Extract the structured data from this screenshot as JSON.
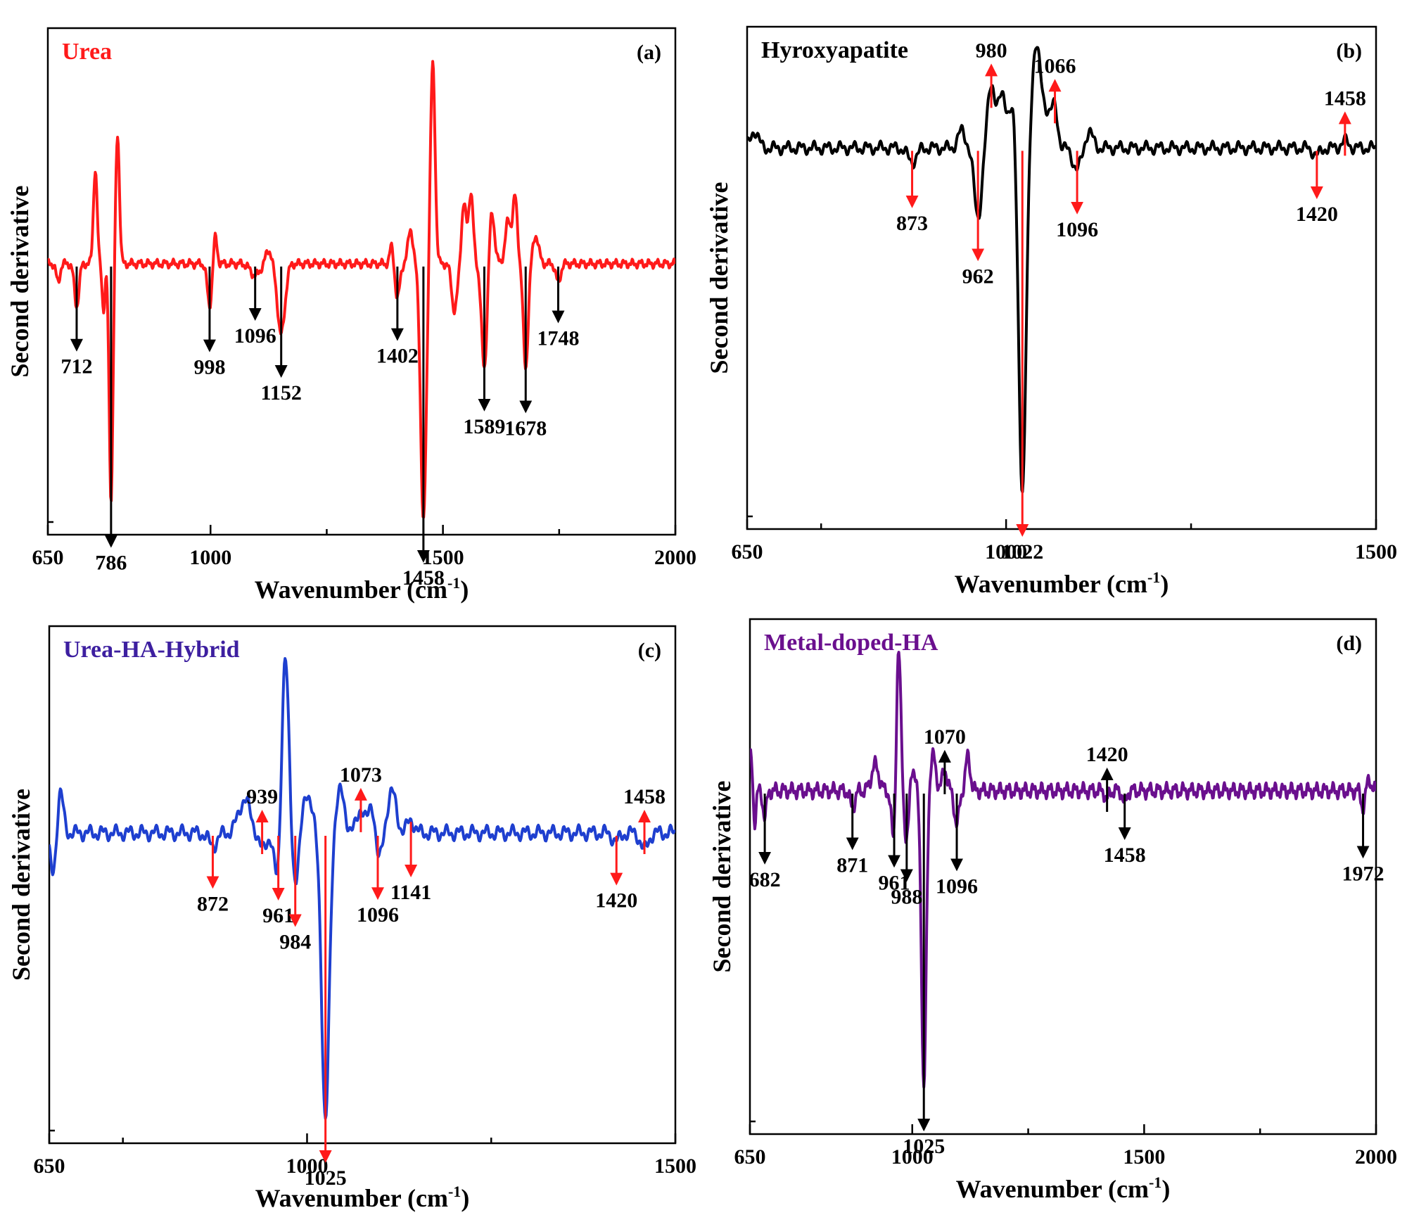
{
  "chart_data": [
    {
      "type": "line",
      "panel_label": "(a)",
      "title": "Urea",
      "title_color": "#ff1a1a",
      "line_color": "#ff1a1a",
      "arrow_color": "#000000",
      "xlabel": "Wavenumber (cm",
      "xlabel_exp": "-1",
      "xlabel_tail": ")",
      "ylabel": "Second derivative",
      "xlim": [
        650,
        2000
      ],
      "major_ticks": [
        650,
        1000,
        1500,
        2000
      ],
      "tick_labels": [
        "650",
        "1000",
        "1500",
        "2000"
      ],
      "minor_ticks": [
        1250,
        1750
      ],
      "baseline": 0,
      "ylim": [
        -1.15,
        1.0
      ],
      "peaks": [
        {
          "x": 672,
          "y": -0.08,
          "w": 4
        },
        {
          "x": 712,
          "y": -0.18,
          "w": 5
        },
        {
          "x": 752,
          "y": 0.4,
          "w": 4
        },
        {
          "x": 786,
          "y": -1.0,
          "w": 4
        },
        {
          "x": 770,
          "y": -0.2,
          "w": 3
        },
        {
          "x": 800,
          "y": 0.55,
          "w": 4
        },
        {
          "x": 998,
          "y": -0.18,
          "w": 5
        },
        {
          "x": 1010,
          "y": 0.12,
          "w": 4
        },
        {
          "x": 1096,
          "y": -0.05,
          "w": 10
        },
        {
          "x": 1152,
          "y": -0.3,
          "w": 8
        },
        {
          "x": 1125,
          "y": 0.06,
          "w": 6
        },
        {
          "x": 1402,
          "y": -0.15,
          "w": 5
        },
        {
          "x": 1390,
          "y": 0.08,
          "w": 4
        },
        {
          "x": 1430,
          "y": 0.15,
          "w": 5
        },
        {
          "x": 1458,
          "y": -1.1,
          "w": 6
        },
        {
          "x": 1478,
          "y": 0.85,
          "w": 5
        },
        {
          "x": 1525,
          "y": -0.2,
          "w": 6
        },
        {
          "x": 1545,
          "y": 0.25,
          "w": 5
        },
        {
          "x": 1560,
          "y": 0.3,
          "w": 5
        },
        {
          "x": 1589,
          "y": -0.45,
          "w": 6
        },
        {
          "x": 1605,
          "y": 0.22,
          "w": 6
        },
        {
          "x": 1640,
          "y": 0.18,
          "w": 6
        },
        {
          "x": 1655,
          "y": 0.28,
          "w": 5
        },
        {
          "x": 1678,
          "y": -0.45,
          "w": 5
        },
        {
          "x": 1700,
          "y": 0.12,
          "w": 6
        },
        {
          "x": 1748,
          "y": -0.08,
          "w": 5
        }
      ],
      "annotations": [
        {
          "x": 712,
          "label": "712",
          "dir": "down"
        },
        {
          "x": 786,
          "label": "786",
          "dir": "down"
        },
        {
          "x": 998,
          "label": "998",
          "dir": "down"
        },
        {
          "x": 1096,
          "label": "1096",
          "dir": "down"
        },
        {
          "x": 1152,
          "label": "1152",
          "dir": "down"
        },
        {
          "x": 1402,
          "label": "1402",
          "dir": "down"
        },
        {
          "x": 1458,
          "label": "1458",
          "dir": "down"
        },
        {
          "x": 1589,
          "label": "1589",
          "dir": "down"
        },
        {
          "x": 1678,
          "label": "1678",
          "dir": "down"
        },
        {
          "x": 1748,
          "label": "1748",
          "dir": "down"
        }
      ]
    },
    {
      "type": "line",
      "panel_label": "(b)",
      "title": "Hyroxyapatite",
      "title_color": "#000000",
      "line_color": "#000000",
      "arrow_color": "#ff1a1a",
      "xlabel": "Wavenumber (cm",
      "xlabel_exp": "-1",
      "xlabel_tail": ")",
      "ylabel": "Second derivative",
      "xlim": [
        650,
        1500
      ],
      "major_ticks": [
        650,
        1000,
        1500
      ],
      "tick_labels": [
        "650",
        "1000",
        "1500"
      ],
      "minor_ticks": [
        750,
        1250
      ],
      "baseline": 0,
      "ylim": [
        -1.1,
        0.35
      ],
      "peaks": [
        {
          "x": 660,
          "y": 0.05,
          "w": 5
        },
        {
          "x": 873,
          "y": -0.04,
          "w": 6
        },
        {
          "x": 940,
          "y": 0.05,
          "w": 5
        },
        {
          "x": 962,
          "y": -0.2,
          "w": 5
        },
        {
          "x": 980,
          "y": 0.18,
          "w": 5
        },
        {
          "x": 995,
          "y": 0.15,
          "w": 6
        },
        {
          "x": 1010,
          "y": 0.12,
          "w": 5
        },
        {
          "x": 1022,
          "y": -1.0,
          "w": 5
        },
        {
          "x": 1040,
          "y": 0.28,
          "w": 6
        },
        {
          "x": 1055,
          "y": 0.1,
          "w": 8
        },
        {
          "x": 1066,
          "y": 0.08,
          "w": 4
        },
        {
          "x": 1096,
          "y": -0.06,
          "w": 6
        },
        {
          "x": 1112,
          "y": 0.05,
          "w": 5
        },
        {
          "x": 1420,
          "y": -0.02,
          "w": 5
        },
        {
          "x": 1458,
          "y": 0.02,
          "w": 5
        }
      ],
      "annotations": [
        {
          "x": 873,
          "label": "873",
          "dir": "down"
        },
        {
          "x": 962,
          "label": "962",
          "dir": "down"
        },
        {
          "x": 980,
          "label": "980",
          "dir": "up"
        },
        {
          "x": 1022,
          "label": "1022",
          "dir": "down"
        },
        {
          "x": 1066,
          "label": "1066",
          "dir": "up"
        },
        {
          "x": 1096,
          "label": "1096",
          "dir": "down"
        },
        {
          "x": 1420,
          "label": "1420",
          "dir": "down"
        },
        {
          "x": 1458,
          "label": "1458",
          "dir": "up"
        }
      ]
    },
    {
      "type": "line",
      "panel_label": "(c)",
      "title": "Urea-HA-Hybrid",
      "title_color": "#3d1fa0",
      "line_color": "#1e3fcf",
      "arrow_color": "#ff1a1a",
      "xlabel": "Wavenumber (cm",
      "xlabel_exp": "-1",
      "xlabel_tail": ")",
      "ylabel": "Second derivative",
      "xlim": [
        650,
        1500
      ],
      "major_ticks": [
        650,
        1000,
        1500
      ],
      "tick_labels": [
        "650",
        "1000",
        "1500"
      ],
      "minor_ticks": [
        750,
        1250
      ],
      "baseline": 0,
      "ylim": [
        -0.75,
        0.5
      ],
      "peaks": [
        {
          "x": 655,
          "y": -0.1,
          "w": 4
        },
        {
          "x": 665,
          "y": 0.1,
          "w": 4
        },
        {
          "x": 872,
          "y": -0.03,
          "w": 6
        },
        {
          "x": 915,
          "y": 0.08,
          "w": 8
        },
        {
          "x": 939,
          "y": -0.04,
          "w": 5
        },
        {
          "x": 961,
          "y": -0.15,
          "w": 5
        },
        {
          "x": 970,
          "y": 0.45,
          "w": 5
        },
        {
          "x": 984,
          "y": -0.12,
          "w": 5
        },
        {
          "x": 1000,
          "y": 0.1,
          "w": 6
        },
        {
          "x": 1025,
          "y": -0.7,
          "w": 5
        },
        {
          "x": 1045,
          "y": 0.1,
          "w": 6
        },
        {
          "x": 1073,
          "y": 0.06,
          "w": 5
        },
        {
          "x": 1090,
          "y": 0.1,
          "w": 5
        },
        {
          "x": 1096,
          "y": -0.1,
          "w": 5
        },
        {
          "x": 1115,
          "y": 0.1,
          "w": 6
        },
        {
          "x": 1141,
          "y": 0.03,
          "w": 5
        },
        {
          "x": 1420,
          "y": -0.02,
          "w": 5
        },
        {
          "x": 1458,
          "y": -0.04,
          "w": 5
        }
      ],
      "annotations": [
        {
          "x": 872,
          "label": "872",
          "dir": "down"
        },
        {
          "x": 939,
          "label": "939",
          "dir": "up"
        },
        {
          "x": 961,
          "label": "961",
          "dir": "down"
        },
        {
          "x": 984,
          "label": "984",
          "dir": "down"
        },
        {
          "x": 1025,
          "label": "1025",
          "dir": "down"
        },
        {
          "x": 1073,
          "label": "1073",
          "dir": "up"
        },
        {
          "x": 1096,
          "label": "1096",
          "dir": "down"
        },
        {
          "x": 1141,
          "label": "1141",
          "dir": "down"
        },
        {
          "x": 1420,
          "label": "1420",
          "dir": "down"
        },
        {
          "x": 1458,
          "label": "1458",
          "dir": "up"
        }
      ]
    },
    {
      "type": "line",
      "panel_label": "(d)",
      "title": "Metal-doped-HA",
      "title_color": "#6a0f8e",
      "line_color": "#6a0f8e",
      "arrow_color": "#000000",
      "xlabel": "Wavenumber (cm",
      "xlabel_exp": "-1",
      "xlabel_tail": ")",
      "ylabel": "Second derivative",
      "xlim": [
        650,
        2000
      ],
      "major_ticks": [
        650,
        1000,
        1500,
        2000
      ],
      "tick_labels": [
        "650",
        "1000",
        "1500",
        "2000"
      ],
      "minor_ticks": [
        1250,
        1750
      ],
      "baseline": 0,
      "ylim": [
        -0.8,
        0.4
      ],
      "peaks": [
        {
          "x": 652,
          "y": 0.08,
          "w": 4
        },
        {
          "x": 660,
          "y": -0.08,
          "w": 3
        },
        {
          "x": 682,
          "y": -0.06,
          "w": 4
        },
        {
          "x": 871,
          "y": -0.04,
          "w": 5
        },
        {
          "x": 920,
          "y": 0.06,
          "w": 8
        },
        {
          "x": 961,
          "y": -0.15,
          "w": 5
        },
        {
          "x": 970,
          "y": 0.35,
          "w": 5
        },
        {
          "x": 988,
          "y": -0.12,
          "w": 5
        },
        {
          "x": 1000,
          "y": 0.06,
          "w": 5
        },
        {
          "x": 1025,
          "y": -0.7,
          "w": 5
        },
        {
          "x": 1045,
          "y": 0.08,
          "w": 6
        },
        {
          "x": 1070,
          "y": 0.05,
          "w": 5
        },
        {
          "x": 1096,
          "y": -0.08,
          "w": 5
        },
        {
          "x": 1120,
          "y": 0.08,
          "w": 5
        },
        {
          "x": 1420,
          "y": -0.02,
          "w": 4
        },
        {
          "x": 1458,
          "y": -0.03,
          "w": 4
        },
        {
          "x": 1972,
          "y": -0.04,
          "w": 4
        },
        {
          "x": 1985,
          "y": 0.03,
          "w": 4
        }
      ],
      "annotations": [
        {
          "x": 682,
          "label": "682",
          "dir": "down"
        },
        {
          "x": 871,
          "label": "871",
          "dir": "down"
        },
        {
          "x": 961,
          "label": "961",
          "dir": "down"
        },
        {
          "x": 988,
          "label": "988",
          "dir": "down"
        },
        {
          "x": 1025,
          "label": "1025",
          "dir": "down"
        },
        {
          "x": 1070,
          "label": "1070",
          "dir": "up"
        },
        {
          "x": 1096,
          "label": "1096",
          "dir": "down"
        },
        {
          "x": 1420,
          "label": "1420",
          "dir": "up"
        },
        {
          "x": 1458,
          "label": "1458",
          "dir": "down"
        },
        {
          "x": 1972,
          "label": "1972",
          "dir": "down"
        }
      ]
    }
  ]
}
